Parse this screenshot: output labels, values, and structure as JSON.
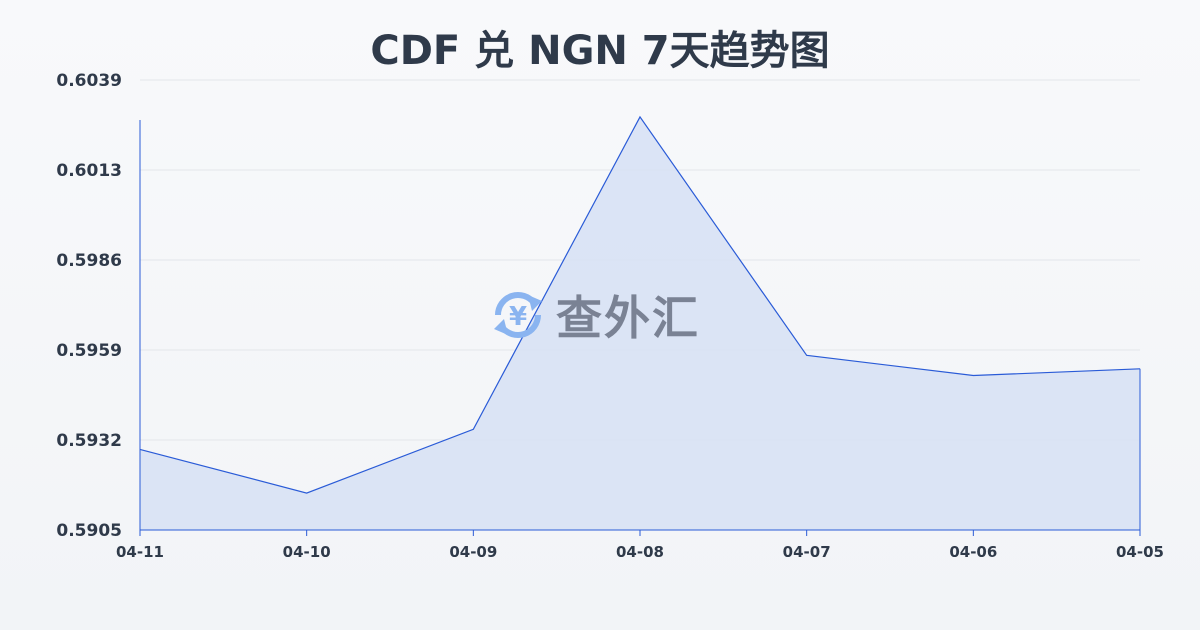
{
  "chart_data": {
    "type": "area",
    "title": "CDF 兑 NGN 7天趋势图",
    "categories": [
      "04-11",
      "04-10",
      "04-09",
      "04-08",
      "04-07",
      "04-06",
      "04-05"
    ],
    "values": [
      0.5929,
      0.5916,
      0.5935,
      0.6028,
      0.5957,
      0.5951,
      0.5953
    ],
    "yticks": [
      "0.5905",
      "0.5932",
      "0.5959",
      "0.5986",
      "0.6013",
      "0.6039"
    ],
    "ylim": [
      0.5905,
      0.6039
    ],
    "grid": true,
    "colors": {
      "line": "#2a5bd7",
      "fill": "#d6e0f5"
    }
  },
  "watermark": {
    "text": "查外汇",
    "icon": "yen-exchange-icon",
    "icon_color": "#8ab4f0"
  }
}
